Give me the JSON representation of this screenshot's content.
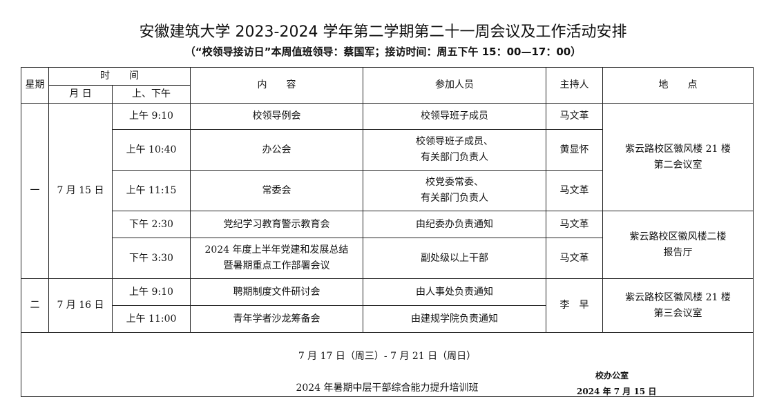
{
  "title": "安徽建筑大学 2023-2024 学年第二学期第二十一周会议及工作活动安排",
  "subtitle": "（“校领导接访日”本周值班领导：蔡国军；接访时间：周五下午 15：00—17：00）",
  "headers": {
    "weekday": "星期",
    "time": "时　　间",
    "date": "月 日",
    "ampm": "上、下午",
    "content": "内　　容",
    "attendees": "参加人员",
    "host": "主持人",
    "location": "地　　点"
  },
  "days": [
    {
      "weekday": "一",
      "date": "7 月 15 日"
    },
    {
      "weekday": "二",
      "date": "7 月 16 日"
    }
  ],
  "rows": [
    {
      "time": "上午 9:10",
      "content": "校领导例会",
      "attendees": "校领导班子成员",
      "host": "马文革"
    },
    {
      "time": "上午 10:40",
      "content": "办公会",
      "attendees": "校领导班子成员、\n有关部门负责人",
      "host": "黄显怀"
    },
    {
      "time": "上午 11:15",
      "content": "常委会",
      "attendees": "校党委常委、\n有关部门负责人",
      "host": "马文革"
    },
    {
      "time": "下午 2:30",
      "content": "党纪学习教育警示教育会",
      "attendees": "由纪委办负责通知",
      "host": "马文革"
    },
    {
      "time": "下午 3:30",
      "content": "2024 年度上半年党建和发展总结\n暨暑期重点工作部署会议",
      "attendees": "副处级以上干部",
      "host": "马文革"
    },
    {
      "time": "上午 9:10",
      "content": "聘期制度文件研讨会",
      "attendees": "由人事处负责通知",
      "host": "李　早"
    },
    {
      "time": "上午 11:00",
      "content": "青年学者沙龙筹备会",
      "attendees": "由建规学院负责通知"
    }
  ],
  "locations": [
    "紫云路校区徽风楼 21 楼\n第二会议室",
    "紫云路校区徽风楼二楼\n报告厅",
    "紫云路校区徽风楼 21 楼\n第三会议室"
  ],
  "final_row": {
    "dates": "7 月 17 日（周三）- 7 月 21 日（周日）",
    "event": "2024 年暑期中层干部综合能力提升培训班"
  },
  "footer": {
    "office": "校办公室",
    "date": "2024 年 7 月 15 日"
  }
}
